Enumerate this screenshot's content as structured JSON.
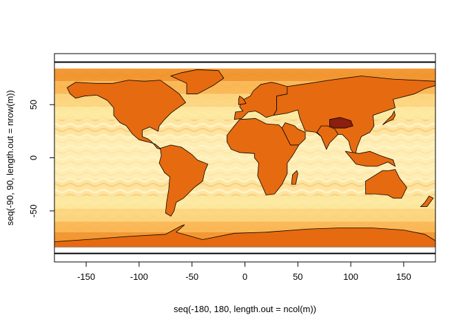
{
  "chart_data": {
    "type": "heatmap",
    "title": "",
    "xlabel": "seq(-180, 180, length.out = ncol(m))",
    "ylabel": "seq(-90, 90, length.out = nrow(m))",
    "xlim": [
      -180,
      180
    ],
    "ylim": [
      -98,
      98
    ],
    "data_extent_y": [
      -84,
      84
    ],
    "x_ticks": [
      -150,
      -100,
      -50,
      0,
      50,
      100,
      150
    ],
    "y_ticks": [
      -50,
      0,
      50
    ],
    "x_tick_labels": [
      "-150",
      "-100",
      "-50",
      "0",
      "50",
      "100",
      "150"
    ],
    "y_tick_labels": [
      "-50",
      "0",
      "50"
    ],
    "horizontal_lines_y": [
      90,
      -90
    ],
    "colors": {
      "palette": [
        "#fff4c2",
        "#fde9a0",
        "#fcd27a",
        "#f9b04a",
        "#f08a1f",
        "#e86a0a",
        "#c9560e",
        "#8c1f0f"
      ],
      "land": "#e66a10",
      "border": "#000000"
    },
    "overlay": "country borders (world map)"
  }
}
